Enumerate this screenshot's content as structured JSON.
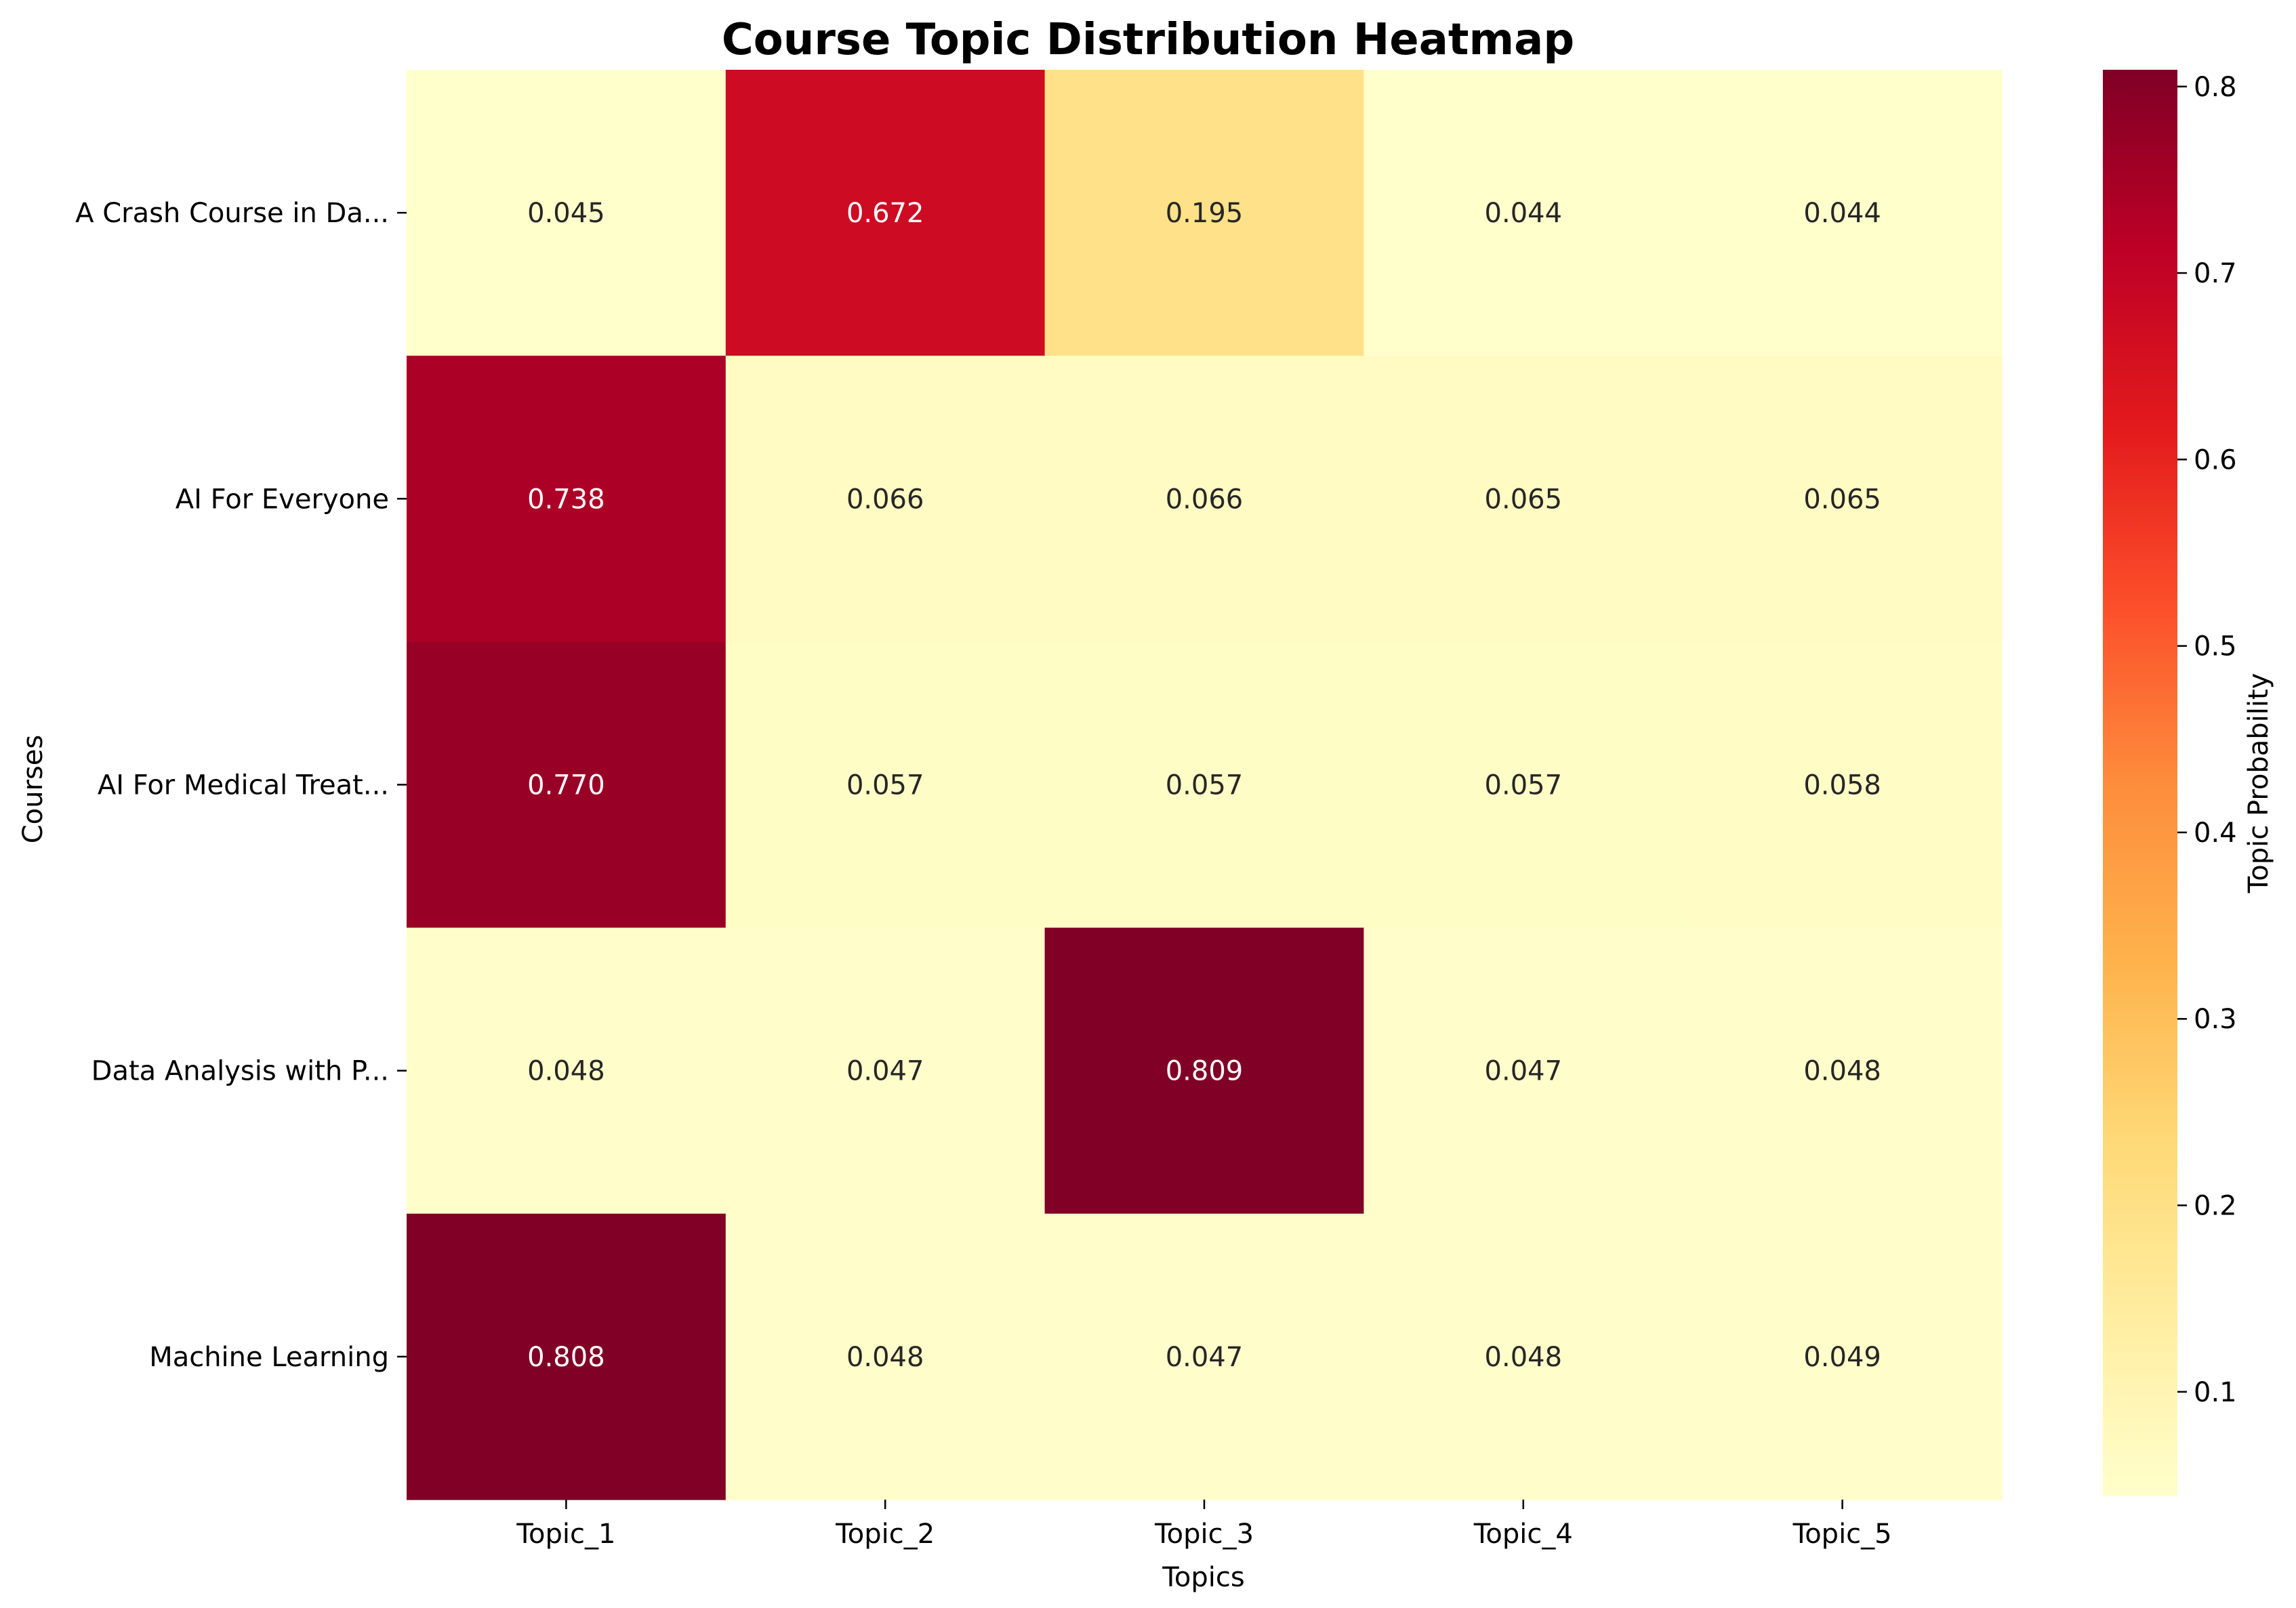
{
  "chart_data": {
    "type": "heatmap",
    "title": "Course Topic Distribution Heatmap",
    "xlabel": "Topics",
    "ylabel": "Courses",
    "x_categories": [
      "Topic_1",
      "Topic_2",
      "Topic_3",
      "Topic_4",
      "Topic_5"
    ],
    "y_categories": [
      "A Crash Course in Da...",
      "AI For Everyone",
      "AI For Medical Treat...",
      "Data Analysis with P...",
      "Machine Learning"
    ],
    "values": [
      [
        0.045,
        0.672,
        0.195,
        0.044,
        0.044
      ],
      [
        0.738,
        0.066,
        0.066,
        0.065,
        0.065
      ],
      [
        0.77,
        0.057,
        0.057,
        0.057,
        0.058
      ],
      [
        0.048,
        0.047,
        0.809,
        0.047,
        0.048
      ],
      [
        0.808,
        0.048,
        0.047,
        0.048,
        0.049
      ]
    ],
    "value_format": "0.000",
    "colorscale": "YlOrRd",
    "colorbar": {
      "label": "Topic Probability",
      "range": [
        0.044,
        0.809
      ],
      "ticks": [
        "0.1",
        "0.2",
        "0.3",
        "0.4",
        "0.5",
        "0.6",
        "0.7",
        "0.8"
      ],
      "tick_values": [
        0.1,
        0.2,
        0.3,
        0.4,
        0.5,
        0.6,
        0.7,
        0.8
      ]
    },
    "grid": false
  }
}
